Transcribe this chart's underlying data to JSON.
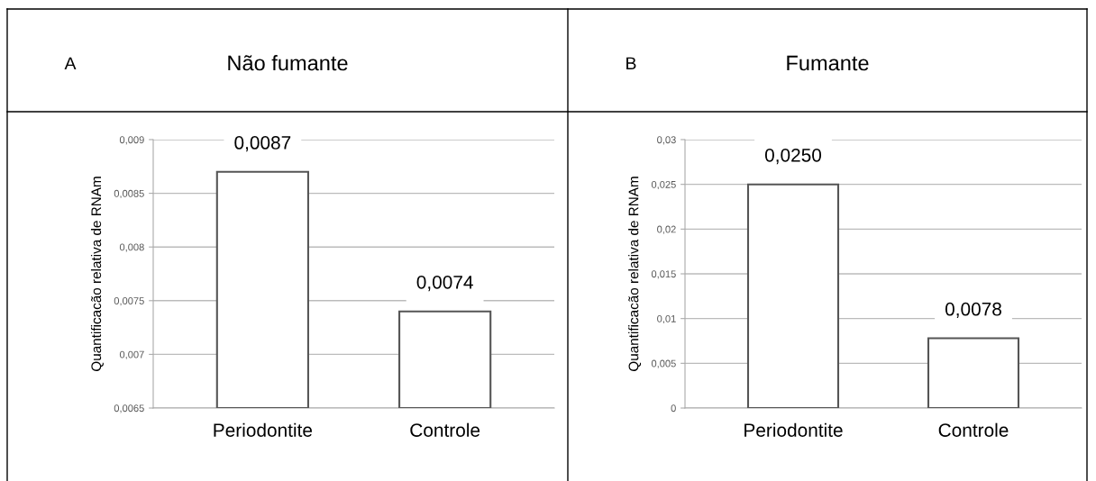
{
  "chart_data": [
    {
      "type": "bar",
      "title": "Não fumante",
      "annotations": [
        "A"
      ],
      "ylabel": "Quantificacão relativa de RNAm",
      "categories": [
        "Periodontite",
        "Controle"
      ],
      "values": [
        0.0087,
        0.0074
      ],
      "value_labels": [
        "0,0087",
        "0,0074"
      ],
      "color": "#ffffff",
      "ylim": [
        0.0065,
        0.009
      ],
      "yticks": [
        {
          "value": 0.0065,
          "label": "0,0065"
        },
        {
          "value": 0.007,
          "label": "0,007"
        },
        {
          "value": 0.0075,
          "label": "0,0075"
        },
        {
          "value": 0.008,
          "label": "0,008"
        },
        {
          "value": 0.0085,
          "label": "0,0085"
        },
        {
          "value": 0.009,
          "label": "0,009"
        }
      ],
      "grid": "y"
    },
    {
      "type": "bar",
      "title": "Fumante",
      "annotations": [
        "B"
      ],
      "ylabel": "Quantificacão relativa de RNAm",
      "categories": [
        "Periodontite",
        "Controle"
      ],
      "values": [
        0.025,
        0.0078
      ],
      "value_labels": [
        "0,0250",
        "0,0078"
      ],
      "color": "#ffffff",
      "ylim": [
        0,
        0.03
      ],
      "yticks": [
        0,
        {
          "value": 0.005,
          "label": "0,005"
        },
        {
          "value": 0.01,
          "label": "0,01"
        },
        {
          "value": 0.015,
          "label": "0,015"
        },
        {
          "value": 0.02,
          "label": "0,02"
        },
        {
          "value": 0.025,
          "label": "0,025"
        },
        {
          "value": 0.03,
          "label": "0,03"
        }
      ],
      "grid": "y"
    }
  ]
}
